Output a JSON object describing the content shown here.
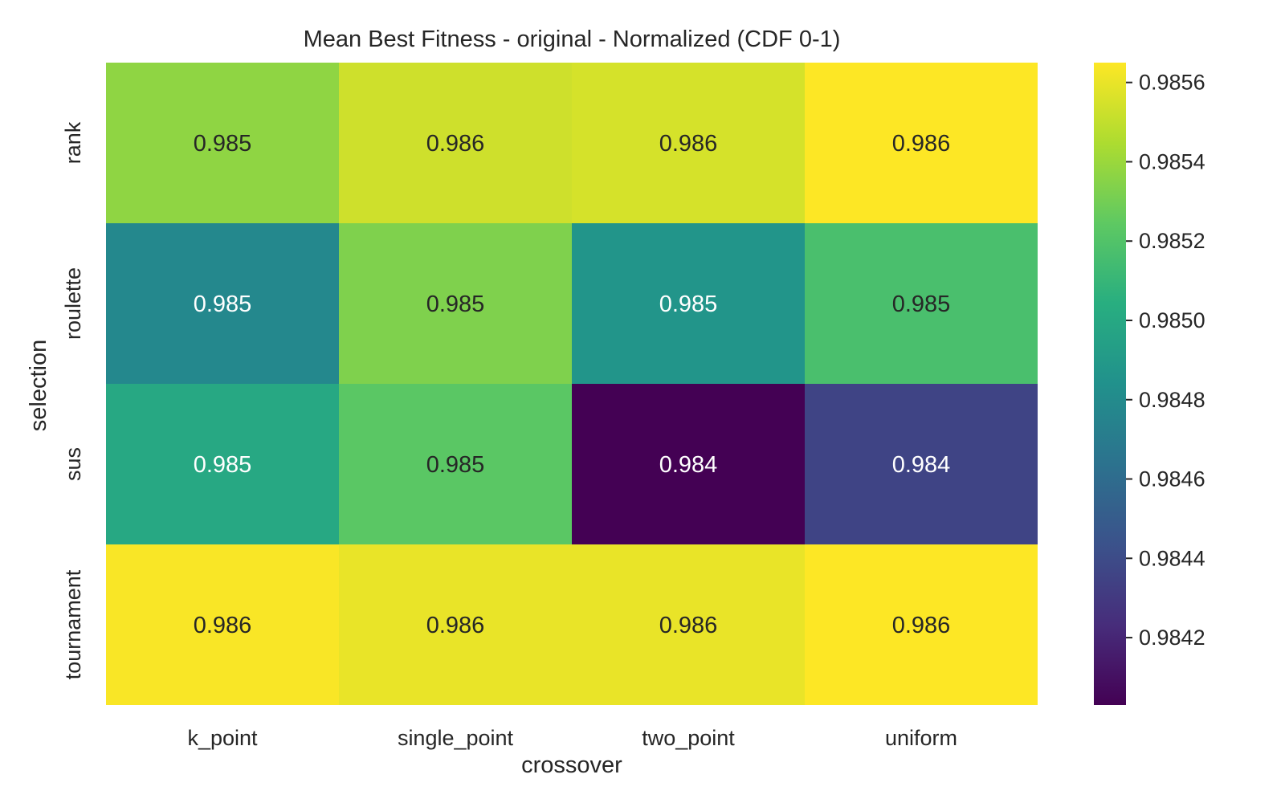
{
  "chart_data": {
    "type": "heatmap",
    "title": "Mean Best Fitness - original - Normalized (CDF 0-1)",
    "xlabel": "crossover",
    "ylabel": "selection",
    "x_categories": [
      "k_point",
      "single_point",
      "two_point",
      "uniform"
    ],
    "y_categories": [
      "rank",
      "roulette",
      "sus",
      "tournament"
    ],
    "values": [
      [
        0.98537,
        0.98553,
        0.98555,
        0.98565
      ],
      [
        0.98478,
        0.98533,
        0.98487,
        0.98517
      ],
      [
        0.985,
        0.98523,
        0.98403,
        0.98436
      ],
      [
        0.98564,
        0.9856,
        0.9856,
        0.98565
      ]
    ],
    "cell_labels": [
      [
        "0.985",
        "0.986",
        "0.986",
        "0.986"
      ],
      [
        "0.985",
        "0.985",
        "0.985",
        "0.985"
      ],
      [
        "0.985",
        "0.985",
        "0.984",
        "0.984"
      ],
      [
        "0.986",
        "0.986",
        "0.986",
        "0.986"
      ]
    ],
    "colormap": "viridis",
    "vmin": 0.98403,
    "vmax": 0.98565,
    "colorbar_ticks": [
      0.9842,
      0.9844,
      0.9846,
      0.9848,
      0.985,
      0.9852,
      0.9854,
      0.9856
    ],
    "colorbar_tick_labels": [
      "0.9842",
      "0.9844",
      "0.9846",
      "0.9848",
      "0.9850",
      "0.9852",
      "0.9854",
      "0.9856"
    ],
    "grid": false,
    "colors": {
      "label_dark": "#262626",
      "label_light": "#ffffff"
    }
  }
}
